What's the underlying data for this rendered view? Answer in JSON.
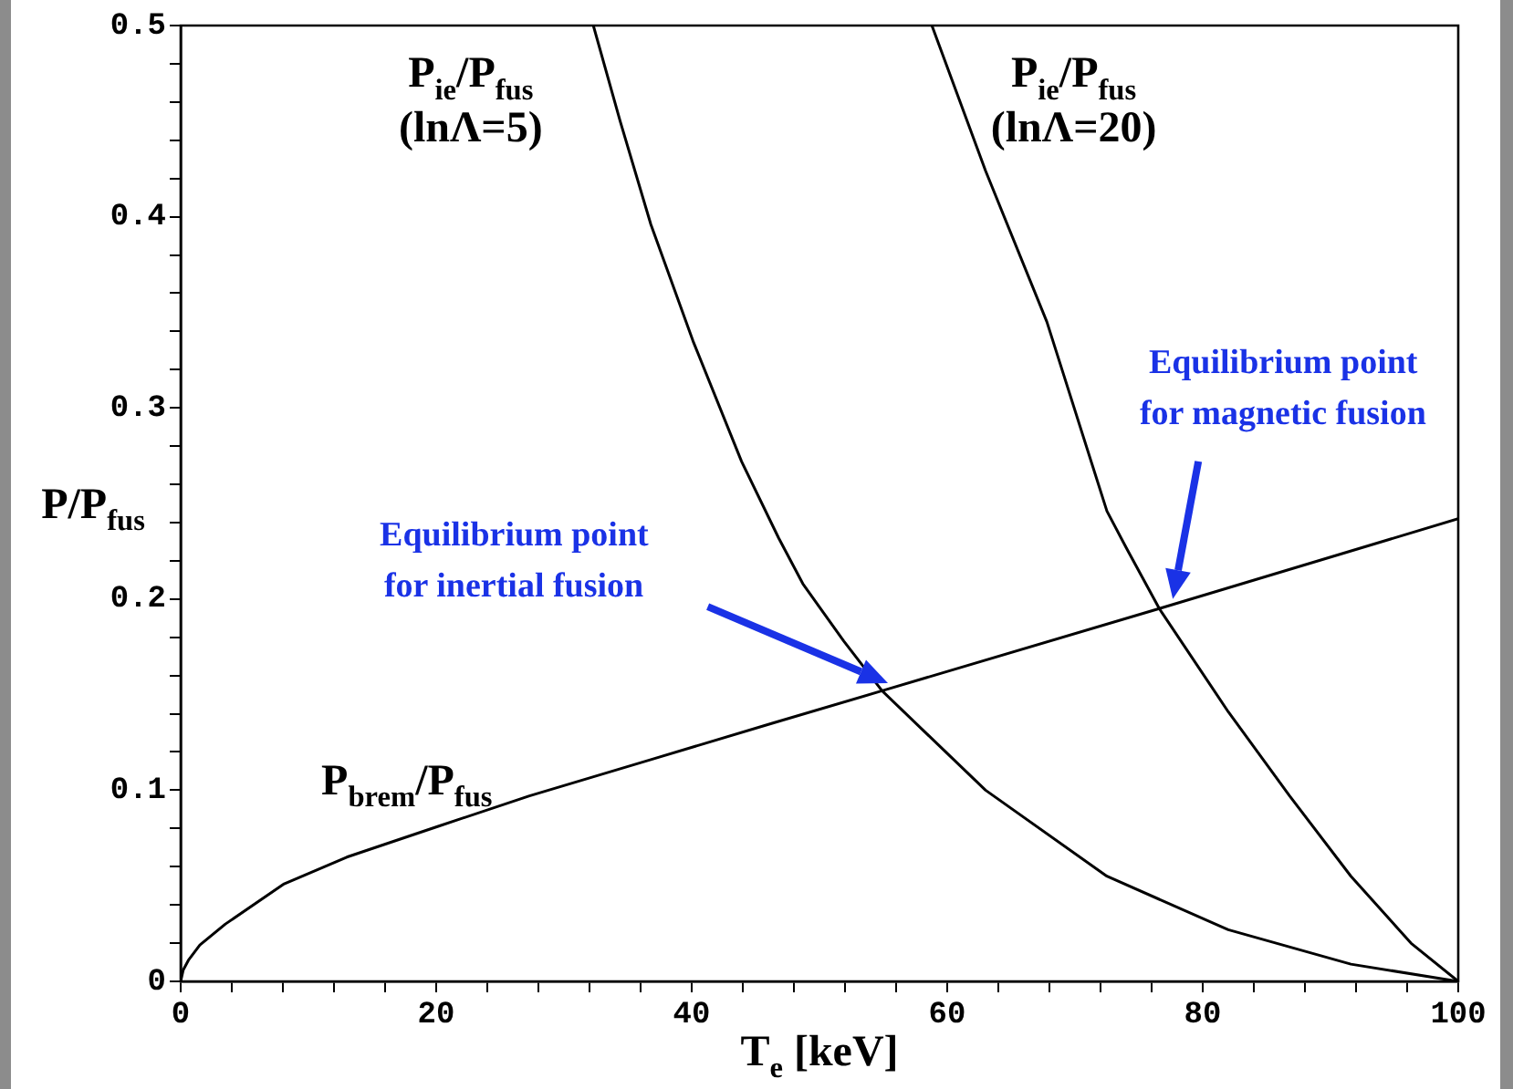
{
  "chart_data": {
    "type": "line",
    "xlabel": "T$_{e}$ [keV]",
    "ylabel": "P/P$_{fus}$",
    "xlim": [
      0,
      100
    ],
    "ylim": [
      0,
      0.5
    ],
    "xticks": [
      0,
      {
        "value": 4,
        "label": null
      },
      {
        "value": 8,
        "label": null
      },
      {
        "value": 12,
        "label": null
      },
      {
        "value": 16,
        "label": null
      },
      20,
      {
        "value": 24,
        "label": null
      },
      {
        "value": 28,
        "label": null
      },
      {
        "value": 32,
        "label": null
      },
      {
        "value": 36,
        "label": null
      },
      40,
      {
        "value": 44,
        "label": null
      },
      {
        "value": 48,
        "label": null
      },
      {
        "value": 52,
        "label": null
      },
      {
        "value": 56,
        "label": null
      },
      60,
      {
        "value": 64,
        "label": null
      },
      {
        "value": 68,
        "label": null
      },
      {
        "value": 72,
        "label": null
      },
      {
        "value": 76,
        "label": null
      },
      80,
      {
        "value": 84,
        "label": null
      },
      {
        "value": 88,
        "label": null
      },
      {
        "value": 92,
        "label": null
      },
      {
        "value": 96,
        "label": null
      },
      100
    ],
    "yticks": [
      0,
      {
        "value": 0.02,
        "label": null
      },
      {
        "value": 0.04,
        "label": null
      },
      {
        "value": 0.06,
        "label": null
      },
      {
        "value": 0.08,
        "label": null
      },
      0.1,
      {
        "value": 0.12,
        "label": null
      },
      {
        "value": 0.14,
        "label": null
      },
      {
        "value": 0.16,
        "label": null
      },
      {
        "value": 0.18,
        "label": null
      },
      0.2,
      {
        "value": 0.22,
        "label": null
      },
      {
        "value": 0.24,
        "label": null
      },
      {
        "value": 0.26,
        "label": null
      },
      {
        "value": 0.28,
        "label": null
      },
      0.3,
      {
        "value": 0.32,
        "label": null
      },
      {
        "value": 0.34,
        "label": null
      },
      {
        "value": 0.36,
        "label": null
      },
      {
        "value": 0.38,
        "label": null
      },
      0.4,
      {
        "value": 0.42,
        "label": null
      },
      {
        "value": 0.44,
        "label": null
      },
      {
        "value": 0.46,
        "label": null
      },
      {
        "value": 0.48,
        "label": null
      },
      0.5
    ],
    "grid": false,
    "legend": false,
    "marker": "none",
    "line_style": "solid",
    "series": [
      {
        "name": "P$_{ie}$/P$_{fus}$ (lnΛ=5)",
        "color": "#000000",
        "x": [
          32.3,
          34.4,
          36.8,
          40.1,
          43.9,
          46.8,
          48.7,
          51.9,
          54.9,
          63,
          72.5,
          82,
          91.6,
          100
        ],
        "values": [
          0.5,
          0.45,
          0.396,
          0.335,
          0.272,
          0.232,
          0.208,
          0.178,
          0.152,
          0.1,
          0.055,
          0.027,
          0.009,
          0
        ]
      },
      {
        "name": "P$_{ie}$/P$_{fus}$ (lnΛ=20)",
        "color": "#000000",
        "x": [
          58.8,
          63,
          67.8,
          72.5,
          74,
          76.6,
          82,
          86.8,
          91.6,
          96.3,
          100
        ],
        "values": [
          0.5,
          0.424,
          0.345,
          0.246,
          0.227,
          0.195,
          0.141,
          0.097,
          0.055,
          0.02,
          0
        ]
      },
      {
        "name": "P$_{brem}$/P$_{fus}$",
        "color": "#000000",
        "x": [
          0,
          0.2,
          0.6,
          1.5,
          3.5,
          8.1,
          13,
          20.1,
          27.3,
          36.8,
          46.3,
          54.9,
          76.6,
          100
        ],
        "values": [
          0,
          0.006,
          0.011,
          0.019,
          0.03,
          0.051,
          0.065,
          0.081,
          0.097,
          0.116,
          0.135,
          0.152,
          0.195,
          0.242
        ]
      }
    ],
    "annotations": [
      "Equilibrium point for inertial fusion",
      "Equilibrium point for magnetic fusion"
    ]
  }
}
